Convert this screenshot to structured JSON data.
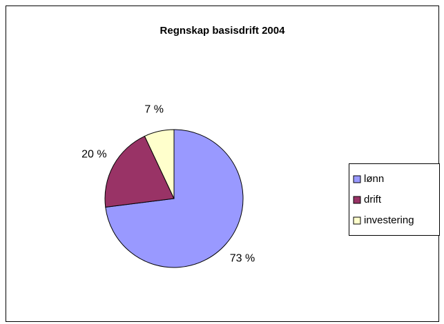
{
  "chart_data": {
    "type": "pie",
    "title": "Regnskap basisdrift 2004",
    "categories": [
      "lønn",
      "drift",
      "investering"
    ],
    "values": [
      73,
      20,
      7
    ],
    "value_labels": [
      "73 %",
      "20 %",
      "7 %"
    ],
    "colors": [
      "#9999ff",
      "#993366",
      "#ffffcc"
    ],
    "legend": "right"
  }
}
